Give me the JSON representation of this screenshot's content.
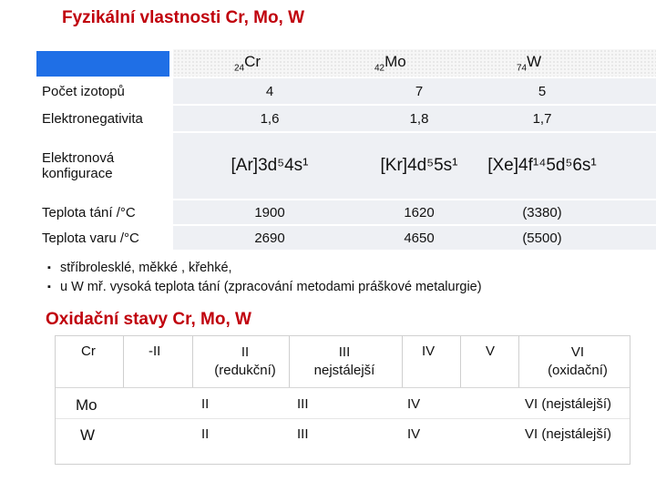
{
  "title_physical": "Fyzikální vlastnosti Cr, Mo, W",
  "elements": [
    {
      "z": "24",
      "sym": "Cr"
    },
    {
      "z": "42",
      "sym": "Mo"
    },
    {
      "z": "74",
      "sym": "W"
    }
  ],
  "rows": [
    {
      "label": "Počet izotopů",
      "cr": "4",
      "mo": "7",
      "w": "5"
    },
    {
      "label": "Elektronegativita",
      "cr": "1,6",
      "mo": "1,8",
      "w": "1,7"
    },
    {
      "label1": "Elektronová",
      "label2": "konfigurace",
      "cr": "[Ar]3d⁵4s¹",
      "mo": "[Kr]4d⁵5s¹",
      "w": "[Xe]4f¹⁴5d⁵6s¹"
    },
    {
      "label": "Teplota tání  /°C",
      "cr": "1900",
      "mo": "1620",
      "w": "(3380)"
    },
    {
      "label": "Teplota varu /°C",
      "cr": "2690",
      "mo": "4650",
      "w": "(5500)"
    }
  ],
  "bullets": [
    "stříbrolesklé, měkké , křehké,",
    "u W mř.  vysoká teplota tání (zpracování metodami práškové metalurgie)"
  ],
  "bullet_marker": "▪",
  "title_oxidation": "Oxidační stavy Cr, Mo, W",
  "ox_header": {
    "cr": "Cr",
    "minus2": "-II",
    "ii": "II",
    "ii_sub": "(redukční)",
    "iii": "III",
    "iii_sub": "nejstálejší",
    "iv": "IV",
    "v": "V",
    "vi": "VI",
    "vi_sub": "(oxidační)"
  },
  "ox_rows": [
    {
      "el": "Mo",
      "ii": "II",
      "iii": "III",
      "iv": "IV",
      "vi": "VI (nejstálejší)"
    },
    {
      "el": "W",
      "ii": "II",
      "iii": "III",
      "iv": "IV",
      "vi": "VI (nejstálejší)"
    }
  ],
  "colors": {
    "accent_red": "#c0000c",
    "header_blue": "#1f6fe6"
  }
}
